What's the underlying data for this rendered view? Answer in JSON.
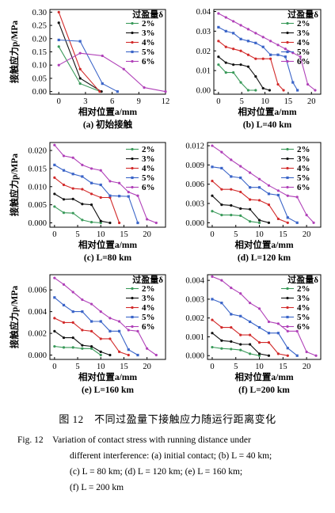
{
  "figure": {
    "caption_cn": "图 12　不同过盈量下接触应力随运行距离变化",
    "caption_en_lines": [
      "Fig. 12　Variation of contact stress with running distance under",
      "different interference: (a) initial contact; (b) L = 40 km;",
      "(c) L = 80 km; (d) L = 120 km; (e) L = 160 km;",
      "(f) L = 200 km"
    ]
  },
  "colors": {
    "2%": "#3a9a5a",
    "3%": "#111111",
    "4%": "#d22a2a",
    "5%": "#3a64c8",
    "6%": "#b040b8"
  },
  "chart_data": [
    {
      "type": "line",
      "panel": "a",
      "caption": "(a) 初始接触",
      "ylabel": "接触应力p/MPa",
      "xlabel": "相对位置a/mm",
      "legend_title": "过盈量δ",
      "legend_placement": "top-right",
      "xlim": [
        -1,
        12
      ],
      "ylim": [
        -0.01,
        0.31
      ],
      "xticks": [
        0,
        3,
        6,
        9,
        12
      ],
      "yticks": [
        0.0,
        0.05,
        0.1,
        0.15,
        0.2,
        0.25,
        0.3
      ],
      "ytick_labels": [
        "0.00",
        "0.05",
        "0.10",
        "0.15",
        "0.20",
        "0.25",
        "0.30"
      ],
      "series": [
        {
          "name": "2%",
          "x": [
            0,
            2.4,
            4.7
          ],
          "y": [
            0.17,
            0.03,
            0.0
          ]
        },
        {
          "name": "3%",
          "x": [
            0,
            2.4,
            4.8
          ],
          "y": [
            0.26,
            0.05,
            0.0
          ]
        },
        {
          "name": "4%",
          "x": [
            0,
            2.4,
            4.6
          ],
          "y": [
            0.3,
            0.085,
            0.0
          ]
        },
        {
          "name": "5%",
          "x": [
            0,
            2.4,
            4.9,
            6.6
          ],
          "y": [
            0.195,
            0.19,
            0.03,
            0.0
          ]
        },
        {
          "name": "6%",
          "x": [
            0,
            2.4,
            4.9,
            7.3,
            9.6,
            12
          ],
          "y": [
            0.1,
            0.145,
            0.135,
            0.085,
            0.015,
            0.0
          ]
        }
      ]
    },
    {
      "type": "line",
      "panel": "b",
      "caption": "(b) L=40 km",
      "ylabel": "",
      "xlabel": "相对位置a/mm",
      "legend_title": "过盈量δ",
      "legend_placement": "top-right",
      "xlim": [
        -1,
        22
      ],
      "ylim": [
        -0.002,
        0.041
      ],
      "xticks": [
        0,
        5,
        10,
        15,
        20
      ],
      "yticks": [
        0.0,
        0.01,
        0.02,
        0.03,
        0.04
      ],
      "ytick_labels": [
        "0.00",
        "0.01",
        "0.02",
        "0.03",
        "0.04"
      ],
      "series": [
        {
          "name": "2%",
          "x": [
            0,
            1.6,
            3.2,
            4.8,
            6.4,
            8.0
          ],
          "y": [
            0.013,
            0.009,
            0.009,
            0.004,
            0.0,
            0.0
          ]
        },
        {
          "name": "3%",
          "x": [
            0,
            1.6,
            3.2,
            4.8,
            6.4,
            8.0,
            9.6,
            11.0
          ],
          "y": [
            0.017,
            0.014,
            0.013,
            0.013,
            0.012,
            0.007,
            0.001,
            0.0
          ]
        },
        {
          "name": "4%",
          "x": [
            0,
            1.6,
            3.2,
            4.8,
            6.4,
            8.0,
            9.6,
            11.2,
            12.8,
            14.0
          ],
          "y": [
            0.025,
            0.022,
            0.021,
            0.02,
            0.018,
            0.016,
            0.016,
            0.016,
            0.003,
            0.0
          ]
        },
        {
          "name": "5%",
          "x": [
            0,
            1.6,
            3.2,
            4.8,
            6.4,
            8.0,
            9.6,
            11.2,
            12.8,
            14.4,
            16.0,
            17.0
          ],
          "y": [
            0.032,
            0.03,
            0.029,
            0.026,
            0.025,
            0.024,
            0.022,
            0.018,
            0.018,
            0.017,
            0.004,
            0.0
          ]
        },
        {
          "name": "6%",
          "x": [
            0,
            1.6,
            3.2,
            4.8,
            6.4,
            8.0,
            9.6,
            11.2,
            12.8,
            14.4,
            16.0,
            17.6,
            19.2,
            20.8
          ],
          "y": [
            0.039,
            0.037,
            0.035,
            0.033,
            0.031,
            0.029,
            0.027,
            0.025,
            0.023,
            0.021,
            0.019,
            0.017,
            0.003,
            0.0
          ]
        }
      ]
    },
    {
      "type": "line",
      "panel": "c",
      "caption": "(c) L=80 km",
      "ylabel": "接触应力p/MPa",
      "xlabel": "相对位置a/mm",
      "legend_title": "",
      "legend_placement": "top-right",
      "xlim": [
        -1,
        24
      ],
      "ylim": [
        -0.0012,
        0.0222
      ],
      "xticks": [
        0,
        5,
        10,
        15,
        20
      ],
      "yticks": [
        0.0,
        0.005,
        0.01,
        0.015,
        0.02
      ],
      "ytick_labels": [
        "0.000",
        "0.005",
        "0.010",
        "0.015",
        "0.020"
      ],
      "series": [
        {
          "name": "2%",
          "x": [
            0,
            2,
            4,
            6,
            8,
            10
          ],
          "y": [
            0.0045,
            0.0028,
            0.0027,
            0.0008,
            0.0002,
            0.0
          ]
        },
        {
          "name": "3%",
          "x": [
            0,
            2,
            4,
            6,
            8,
            10,
            12
          ],
          "y": [
            0.008,
            0.0065,
            0.0066,
            0.0052,
            0.005,
            0.0005,
            0.0
          ]
        },
        {
          "name": "4%",
          "x": [
            0,
            2,
            4,
            6,
            8,
            10,
            12,
            14
          ],
          "y": [
            0.0125,
            0.0105,
            0.0095,
            0.0093,
            0.008,
            0.007,
            0.007,
            0.0
          ]
        },
        {
          "name": "5%",
          "x": [
            0,
            2,
            4,
            6,
            8,
            10,
            12,
            14,
            16,
            18
          ],
          "y": [
            0.016,
            0.0145,
            0.0135,
            0.0128,
            0.011,
            0.0105,
            0.0075,
            0.0074,
            0.0073,
            0.0
          ]
        },
        {
          "name": "6%",
          "x": [
            0,
            2,
            4,
            6,
            8,
            10,
            12,
            14,
            16,
            18,
            20,
            22
          ],
          "y": [
            0.0215,
            0.0185,
            0.018,
            0.016,
            0.015,
            0.0145,
            0.0115,
            0.011,
            0.0085,
            0.0075,
            0.001,
            0.0
          ]
        }
      ]
    },
    {
      "type": "line",
      "panel": "d",
      "caption": "(d) L=120 km",
      "ylabel": "",
      "xlabel": "相对位置a/mm",
      "legend_title": "",
      "legend_placement": "top-right",
      "xlim": [
        -1,
        23
      ],
      "ylim": [
        -0.0007,
        0.0125
      ],
      "xticks": [
        0,
        5,
        10,
        15,
        20
      ],
      "yticks": [
        0.0,
        0.003,
        0.006,
        0.009,
        0.012
      ],
      "ytick_labels": [
        "0.000",
        "0.003",
        "0.006",
        "0.009",
        "0.012"
      ],
      "series": [
        {
          "name": "2%",
          "x": [
            0,
            2,
            4,
            6,
            8,
            10
          ],
          "y": [
            0.0018,
            0.0012,
            0.0012,
            0.0011,
            0.0002,
            0.0
          ]
        },
        {
          "name": "3%",
          "x": [
            0,
            2,
            4,
            6,
            8,
            10,
            12
          ],
          "y": [
            0.0042,
            0.0028,
            0.0027,
            0.0022,
            0.0021,
            0.0004,
            0.0
          ]
        },
        {
          "name": "4%",
          "x": [
            0,
            2,
            4,
            6,
            8,
            10,
            12,
            14,
            16
          ],
          "y": [
            0.0065,
            0.0052,
            0.0052,
            0.0048,
            0.0036,
            0.0035,
            0.0028,
            0.0006,
            0.0
          ]
        },
        {
          "name": "5%",
          "x": [
            0,
            2,
            4,
            6,
            8,
            10,
            12,
            14,
            16,
            18
          ],
          "y": [
            0.0087,
            0.0085,
            0.0072,
            0.007,
            0.0055,
            0.0055,
            0.0045,
            0.0043,
            0.0008,
            0.0
          ]
        },
        {
          "name": "6%",
          "x": [
            0,
            2,
            4,
            6,
            8,
            10,
            12,
            14,
            16,
            18,
            20,
            21.5
          ],
          "y": [
            0.012,
            0.011,
            0.0098,
            0.0088,
            0.0078,
            0.0068,
            0.0058,
            0.005,
            0.0042,
            0.004,
            0.0012,
            0.0
          ]
        }
      ]
    },
    {
      "type": "line",
      "panel": "e",
      "caption": "(e) L=160 km",
      "ylabel": "接触应力p/MPa",
      "xlabel": "相对位置a/mm",
      "legend_title": "过盈量δ",
      "legend_placement": "top-right",
      "xlim": [
        -1,
        24
      ],
      "ylim": [
        -0.0004,
        0.0074
      ],
      "xticks": [
        0,
        5,
        10,
        15,
        20
      ],
      "yticks": [
        0.0,
        0.002,
        0.004,
        0.006
      ],
      "ytick_labels": [
        "0.000",
        "0.002",
        "0.004",
        "0.006"
      ],
      "series": [
        {
          "name": "2%",
          "x": [
            0,
            2,
            4,
            6,
            8,
            10
          ],
          "y": [
            0.0008,
            0.0007,
            0.0007,
            0.0006,
            0.0006,
            0.0
          ]
        },
        {
          "name": "3%",
          "x": [
            0,
            2,
            4,
            6,
            8,
            10,
            12
          ],
          "y": [
            0.0022,
            0.0016,
            0.0016,
            0.0009,
            0.0008,
            0.0003,
            0.0
          ]
        },
        {
          "name": "4%",
          "x": [
            0,
            2,
            4,
            6,
            8,
            10,
            12,
            14,
            16
          ],
          "y": [
            0.0034,
            0.003,
            0.003,
            0.0023,
            0.0022,
            0.0015,
            0.0015,
            0.0003,
            0.0
          ]
        },
        {
          "name": "5%",
          "x": [
            0,
            2,
            4,
            6,
            8,
            10,
            12,
            14,
            16,
            18
          ],
          "y": [
            0.0053,
            0.0046,
            0.004,
            0.004,
            0.0031,
            0.0031,
            0.0022,
            0.0022,
            0.0005,
            0.0
          ]
        },
        {
          "name": "6%",
          "x": [
            0,
            2,
            4,
            6,
            8,
            10,
            12,
            14,
            16,
            18,
            20,
            22
          ],
          "y": [
            0.0071,
            0.0065,
            0.0058,
            0.0051,
            0.0047,
            0.004,
            0.0034,
            0.0031,
            0.0023,
            0.0022,
            0.0006,
            0.0
          ]
        }
      ]
    },
    {
      "type": "line",
      "panel": "f",
      "caption": "(f) L=200 km",
      "ylabel": "",
      "xlabel": "相对位置a/mm",
      "legend_title": "过盈量δ",
      "legend_placement": "top-right",
      "xlim": [
        -1,
        23
      ],
      "ylim": [
        -0.0002,
        0.0043
      ],
      "xticks": [
        0,
        5,
        10,
        15,
        20
      ],
      "yticks": [
        0.0,
        0.001,
        0.002,
        0.003,
        0.004
      ],
      "ytick_labels": [
        "0.000",
        "0.001",
        "0.002",
        "0.003",
        "0.004"
      ],
      "series": [
        {
          "name": "2%",
          "x": [
            0,
            2,
            4,
            6,
            8,
            10
          ],
          "y": [
            0.00045,
            0.00038,
            0.00035,
            0.0003,
            0.0001,
            0.0
          ]
        },
        {
          "name": "3%",
          "x": [
            0,
            2,
            4,
            6,
            8,
            10,
            12
          ],
          "y": [
            0.0012,
            0.0008,
            0.00075,
            0.0006,
            0.0006,
            0.0001,
            0.0
          ]
        },
        {
          "name": "4%",
          "x": [
            0,
            2,
            4,
            6,
            8,
            10,
            12,
            14,
            16
          ],
          "y": [
            0.0019,
            0.0015,
            0.0015,
            0.0011,
            0.0011,
            0.0007,
            0.0007,
            0.0001,
            0.0
          ]
        },
        {
          "name": "5%",
          "x": [
            0,
            2,
            4,
            6,
            8,
            10,
            12,
            14,
            16,
            18
          ],
          "y": [
            0.003,
            0.0028,
            0.0022,
            0.0021,
            0.0018,
            0.0015,
            0.0012,
            0.0012,
            0.0004,
            0.0
          ]
        },
        {
          "name": "6%",
          "x": [
            0,
            2,
            4,
            6,
            8,
            10,
            12,
            14,
            16,
            18,
            20,
            22
          ],
          "y": [
            0.0042,
            0.004,
            0.0036,
            0.0033,
            0.0028,
            0.0025,
            0.0018,
            0.0017,
            0.0013,
            0.0013,
            0.0002,
            0.0
          ]
        }
      ]
    }
  ]
}
